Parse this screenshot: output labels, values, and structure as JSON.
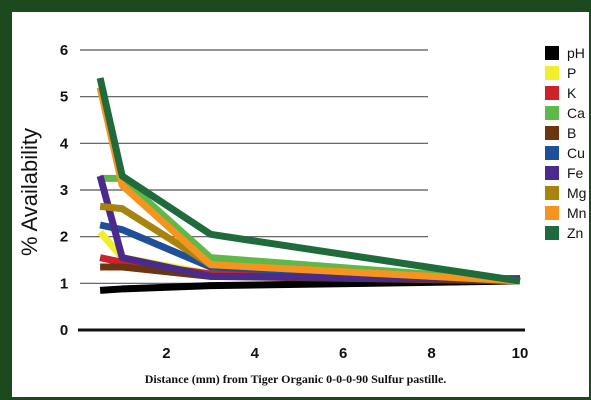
{
  "chart_data": {
    "type": "line",
    "title": "",
    "xlabel": "Distance (mm) from Tiger Organic 0-0-0-90 Sulfur  pastille.",
    "ylabel": "% Availability",
    "xlim": [
      0,
      10
    ],
    "ylim": [
      0,
      6
    ],
    "x_ticks": [
      "2",
      "4",
      "6",
      "8",
      "10"
    ],
    "y_ticks": [
      "0",
      "1",
      "2",
      "3",
      "4",
      "5",
      "6"
    ],
    "grid": "horizontal",
    "legend_position": "right",
    "series": [
      {
        "name": "pH",
        "color": "#000000",
        "x": [
          0.5,
          1,
          3,
          10
        ],
        "y": [
          0.85,
          0.88,
          0.95,
          1.05
        ]
      },
      {
        "name": "P",
        "color": "#f2ee2a",
        "x": [
          0.5,
          1,
          3,
          10
        ],
        "y": [
          2.1,
          1.55,
          1.2,
          1.05
        ]
      },
      {
        "name": "K",
        "color": "#cc2229",
        "x": [
          0.5,
          1,
          3,
          10
        ],
        "y": [
          1.55,
          1.45,
          1.2,
          1.05
        ]
      },
      {
        "name": "Ca",
        "color": "#5fb84a",
        "x": [
          0.5,
          1,
          3,
          10
        ],
        "y": [
          3.25,
          3.25,
          1.55,
          1.05
        ]
      },
      {
        "name": "B",
        "color": "#6b3510",
        "x": [
          0.5,
          1,
          3,
          10
        ],
        "y": [
          1.35,
          1.35,
          1.15,
          1.05
        ]
      },
      {
        "name": "Cu",
        "color": "#1f4f9a",
        "x": [
          0.5,
          1,
          3,
          10
        ],
        "y": [
          2.25,
          2.15,
          1.35,
          1.05
        ]
      },
      {
        "name": "Fe",
        "color": "#4a2a8a",
        "x": [
          0.5,
          1,
          3,
          10
        ],
        "y": [
          3.3,
          1.55,
          1.15,
          1.1
        ]
      },
      {
        "name": "Mg",
        "color": "#a8840e",
        "x": [
          0.5,
          1,
          3,
          10
        ],
        "y": [
          2.65,
          2.6,
          1.4,
          1.05
        ]
      },
      {
        "name": "Mn",
        "color": "#f5941e",
        "x": [
          0.5,
          1,
          3,
          10
        ],
        "y": [
          5.2,
          3.1,
          1.4,
          1.05
        ]
      },
      {
        "name": "Zn",
        "color": "#1f6b3b",
        "x": [
          0.5,
          1,
          3,
          10
        ],
        "y": [
          5.4,
          3.3,
          2.05,
          1.05
        ]
      }
    ]
  }
}
